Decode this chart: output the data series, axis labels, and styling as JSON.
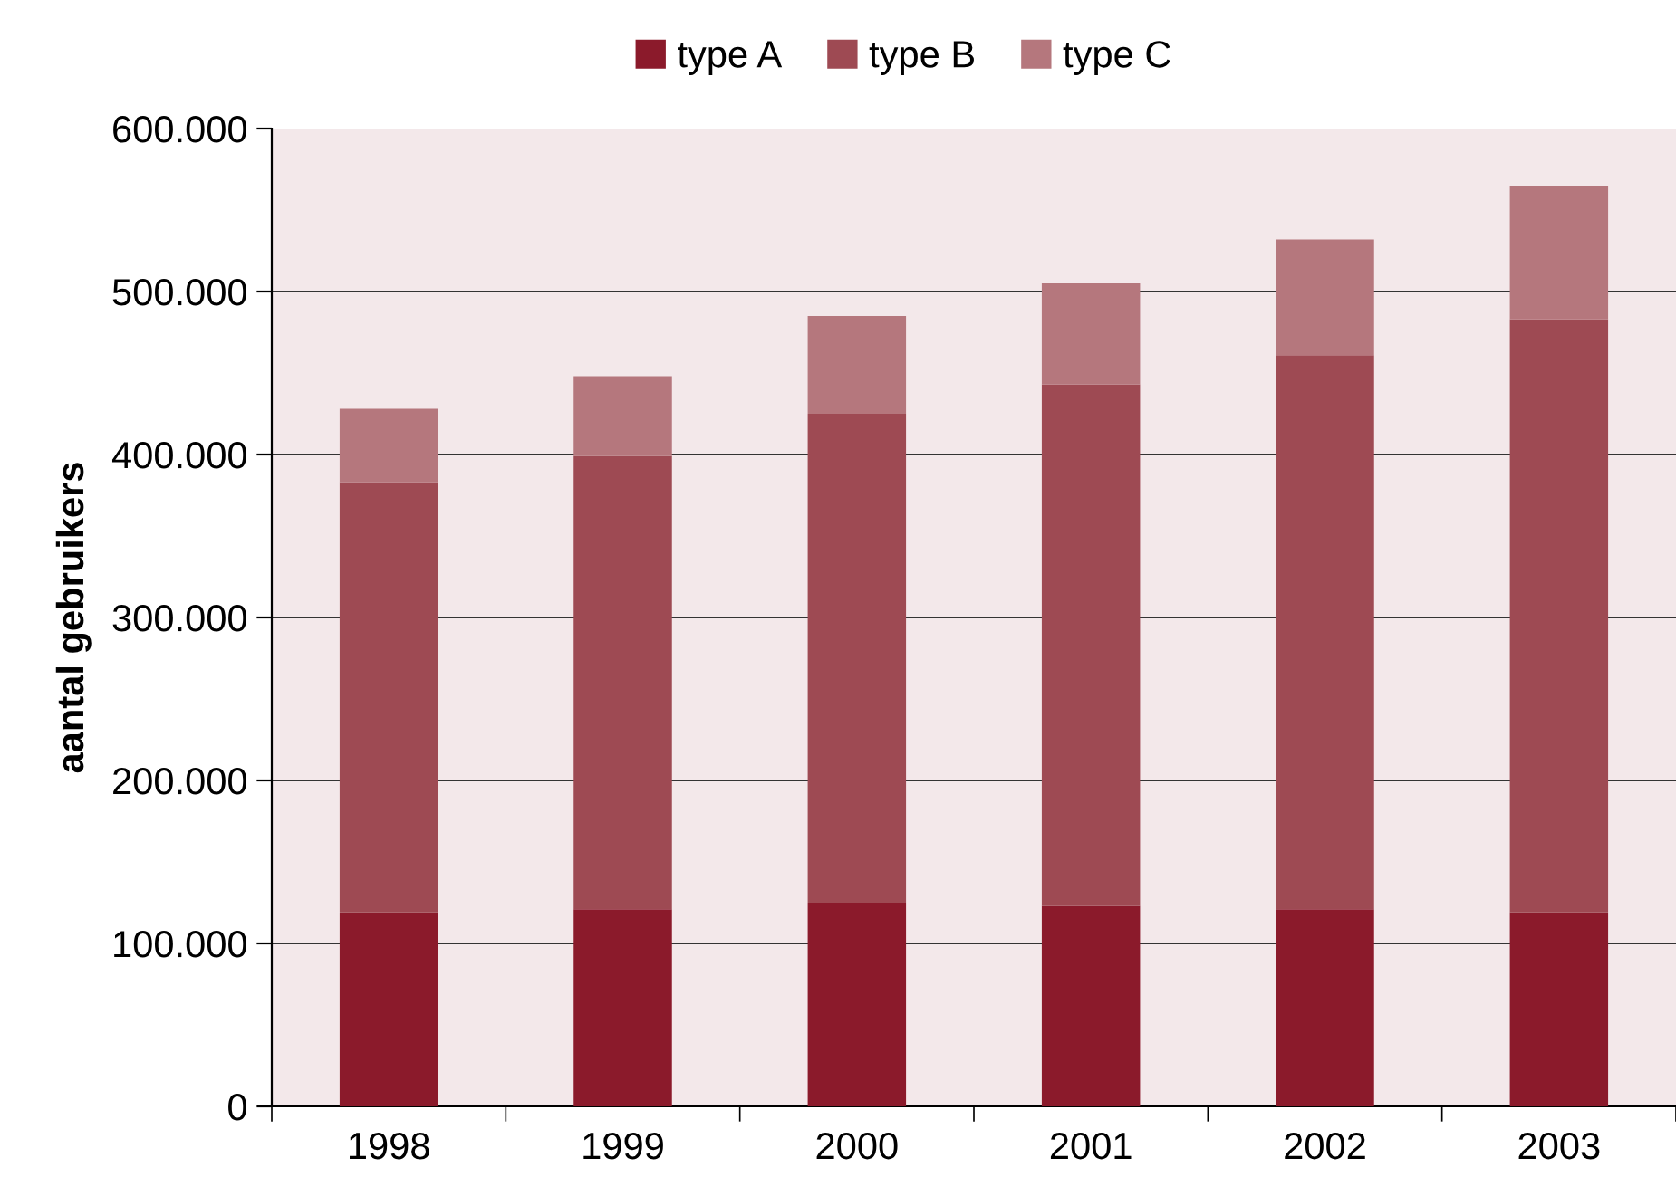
{
  "chart_data": {
    "type": "bar",
    "stacked": true,
    "ylabel": "aantal gebruikers",
    "categories": [
      "1998",
      "1999",
      "2000",
      "2001",
      "2002",
      "2003"
    ],
    "series": [
      {
        "name": "type A",
        "color": "#8b1a2b",
        "values": [
          119000,
          121000,
          125000,
          123000,
          121000,
          119000
        ]
      },
      {
        "name": "type B",
        "color": "#9e4a53",
        "values": [
          264000,
          278000,
          300000,
          320000,
          340000,
          364000
        ]
      },
      {
        "name": "type C",
        "color": "#b5777d",
        "values": [
          45000,
          49000,
          60000,
          62000,
          71000,
          82000
        ]
      }
    ],
    "ylim": [
      0,
      600000
    ],
    "yticks": [
      {
        "value": 0,
        "label": "0"
      },
      {
        "value": 100000,
        "label": "100.000"
      },
      {
        "value": 200000,
        "label": "200.000"
      },
      {
        "value": 300000,
        "label": "300.000"
      },
      {
        "value": 400000,
        "label": "400.000"
      },
      {
        "value": 500000,
        "label": "500.000"
      },
      {
        "value": 600000,
        "label": "600.000"
      }
    ],
    "grid": "y",
    "legend": "top"
  }
}
